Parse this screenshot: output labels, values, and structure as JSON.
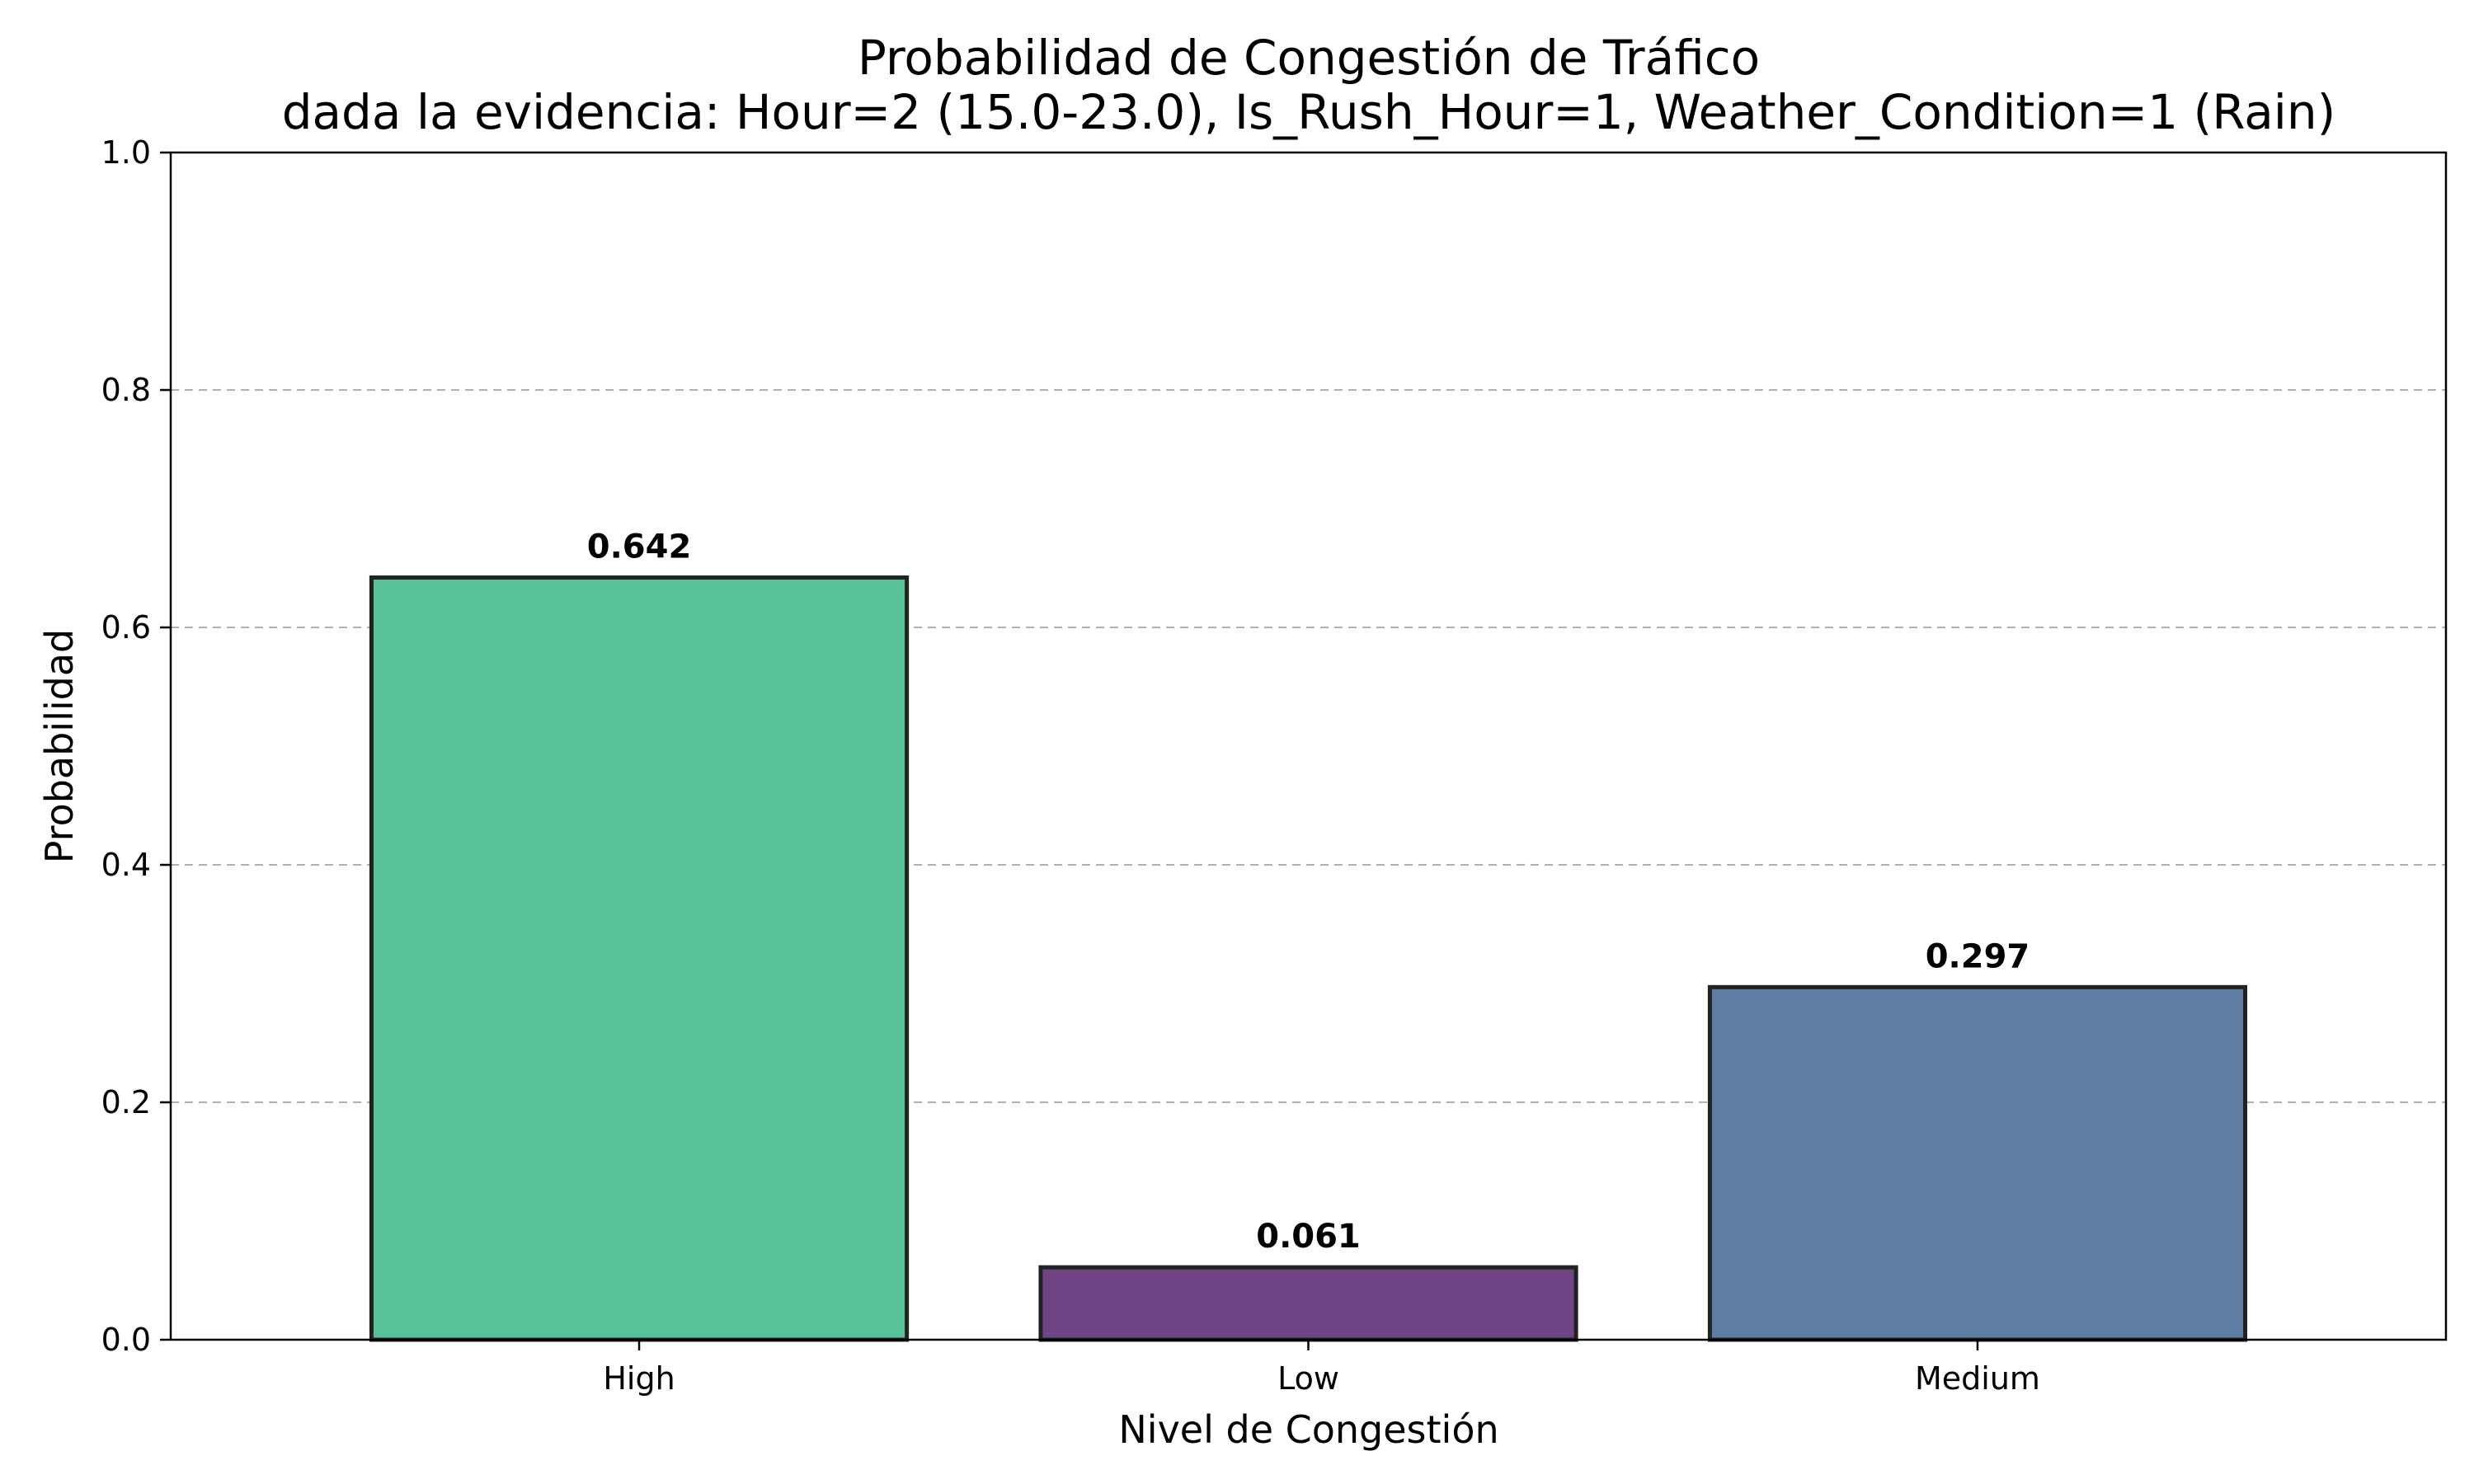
{
  "chart_data": {
    "type": "bar",
    "title": "Probabilidad de Congestión de Tráfico",
    "subtitle": "dada la evidencia: Hour=2 (15.0-23.0), Is_Rush_Hour=1, Weather_Condition=1 (Rain)",
    "xlabel": "Nivel de Congestión",
    "ylabel": "Probabilidad",
    "categories": [
      "High",
      "Low",
      "Medium"
    ],
    "values": [
      0.642,
      0.061,
      0.297
    ],
    "value_labels": [
      "0.642",
      "0.061",
      "0.297"
    ],
    "colors": [
      "#5ac298",
      "#6f4586",
      "#5e7fa2"
    ],
    "ylim": [
      0,
      1
    ],
    "yticks": [
      0.0,
      0.2,
      0.4,
      0.6,
      0.8,
      1.0
    ],
    "ytick_labels": [
      "0.0",
      "0.2",
      "0.4",
      "0.6",
      "0.8",
      "1.0"
    ],
    "grid": "y-dashed"
  }
}
